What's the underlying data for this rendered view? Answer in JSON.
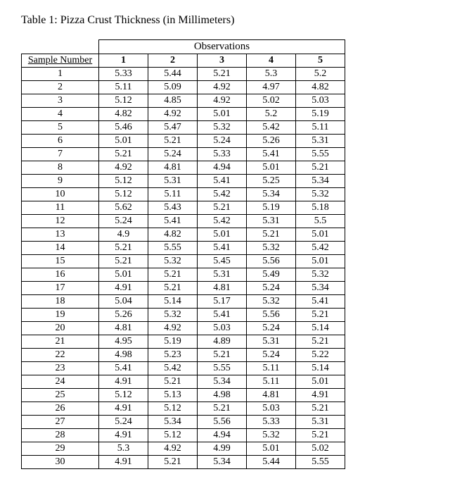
{
  "title": "Table 1: Pizza Crust Thickness (in Millimeters)",
  "table": {
    "observations_label": "Observations",
    "sample_number_label": "Sample Number",
    "columns": [
      "1",
      "2",
      "3",
      "4",
      "5"
    ],
    "rows": [
      {
        "n": "1",
        "v": [
          "5.33",
          "5.44",
          "5.21",
          "5.3",
          "5.2"
        ]
      },
      {
        "n": "2",
        "v": [
          "5.11",
          "5.09",
          "4.92",
          "4.97",
          "4.82"
        ]
      },
      {
        "n": "3",
        "v": [
          "5.12",
          "4.85",
          "4.92",
          "5.02",
          "5.03"
        ]
      },
      {
        "n": "4",
        "v": [
          "4.82",
          "4.92",
          "5.01",
          "5.2",
          "5.19"
        ]
      },
      {
        "n": "5",
        "v": [
          "5.46",
          "5.47",
          "5.32",
          "5.42",
          "5.11"
        ]
      },
      {
        "n": "6",
        "v": [
          "5.01",
          "5.21",
          "5.24",
          "5.26",
          "5.31"
        ]
      },
      {
        "n": "7",
        "v": [
          "5.21",
          "5.24",
          "5.33",
          "5.41",
          "5.55"
        ]
      },
      {
        "n": "8",
        "v": [
          "4.92",
          "4.81",
          "4.94",
          "5.01",
          "5.21"
        ]
      },
      {
        "n": "9",
        "v": [
          "5.12",
          "5.31",
          "5.41",
          "5.25",
          "5.34"
        ]
      },
      {
        "n": "10",
        "v": [
          "5.12",
          "5.11",
          "5.42",
          "5.34",
          "5.32"
        ]
      },
      {
        "n": "11",
        "v": [
          "5.62",
          "5.43",
          "5.21",
          "5.19",
          "5.18"
        ]
      },
      {
        "n": "12",
        "v": [
          "5.24",
          "5.41",
          "5.42",
          "5.31",
          "5.5"
        ]
      },
      {
        "n": "13",
        "v": [
          "4.9",
          "4.82",
          "5.01",
          "5.21",
          "5.01"
        ]
      },
      {
        "n": "14",
        "v": [
          "5.21",
          "5.55",
          "5.41",
          "5.32",
          "5.42"
        ]
      },
      {
        "n": "15",
        "v": [
          "5.21",
          "5.32",
          "5.45",
          "5.56",
          "5.01"
        ]
      },
      {
        "n": "16",
        "v": [
          "5.01",
          "5.21",
          "5.31",
          "5.49",
          "5.32"
        ]
      },
      {
        "n": "17",
        "v": [
          "4.91",
          "5.21",
          "4.81",
          "5.24",
          "5.34"
        ]
      },
      {
        "n": "18",
        "v": [
          "5.04",
          "5.14",
          "5.17",
          "5.32",
          "5.41"
        ]
      },
      {
        "n": "19",
        "v": [
          "5.26",
          "5.32",
          "5.41",
          "5.56",
          "5.21"
        ]
      },
      {
        "n": "20",
        "v": [
          "4.81",
          "4.92",
          "5.03",
          "5.24",
          "5.14"
        ]
      },
      {
        "n": "21",
        "v": [
          "4.95",
          "5.19",
          "4.89",
          "5.31",
          "5.21"
        ]
      },
      {
        "n": "22",
        "v": [
          "4.98",
          "5.23",
          "5.21",
          "5.24",
          "5.22"
        ]
      },
      {
        "n": "23",
        "v": [
          "5.41",
          "5.42",
          "5.55",
          "5.11",
          "5.14"
        ]
      },
      {
        "n": "24",
        "v": [
          "4.91",
          "5.21",
          "5.34",
          "5.11",
          "5.01"
        ]
      },
      {
        "n": "25",
        "v": [
          "5.12",
          "5.13",
          "4.98",
          "4.81",
          "4.91"
        ]
      },
      {
        "n": "26",
        "v": [
          "4.91",
          "5.12",
          "5.21",
          "5.03",
          "5.21"
        ]
      },
      {
        "n": "27",
        "v": [
          "5.24",
          "5.34",
          "5.56",
          "5.33",
          "5.31"
        ]
      },
      {
        "n": "28",
        "v": [
          "4.91",
          "5.12",
          "4.94",
          "5.32",
          "5.21"
        ]
      },
      {
        "n": "29",
        "v": [
          "5.3",
          "4.92",
          "4.99",
          "5.01",
          "5.02"
        ]
      },
      {
        "n": "30",
        "v": [
          "4.91",
          "5.21",
          "5.34",
          "5.44",
          "5.55"
        ]
      }
    ]
  }
}
